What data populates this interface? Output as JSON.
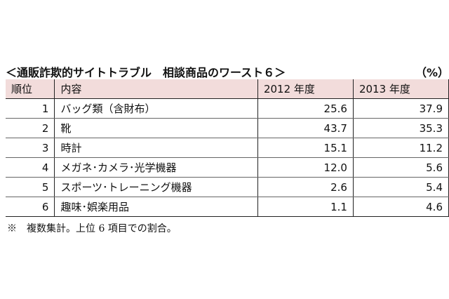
{
  "title": "＜通販詐欺的サイトトラブル　相談商品のワースト６＞",
  "unit": "（%）",
  "table": {
    "headers": [
      "順位",
      "内容",
      "2012 年度",
      "2013 年度"
    ],
    "rows": [
      {
        "rank": "1",
        "item": "バッグ類（含財布）",
        "y2012": "25.6",
        "y2013": "37.9"
      },
      {
        "rank": "2",
        "item": "靴",
        "y2012": "43.7",
        "y2013": "35.3"
      },
      {
        "rank": "3",
        "item": "時計",
        "y2012": "15.1",
        "y2013": "11.2"
      },
      {
        "rank": "4",
        "item": "メガネ･カメラ･光学機器",
        "y2012": "12.0",
        "y2013": "5.6"
      },
      {
        "rank": "5",
        "item": "スポーツ･トレーニング機器",
        "y2012": "2.6",
        "y2013": "5.4"
      },
      {
        "rank": "6",
        "item": "趣味･娯楽用品",
        "y2012": "1.1",
        "y2013": "4.6"
      }
    ]
  },
  "note": "※　複数集計。上位 6 項目での割合。",
  "colors": {
    "header_bg": "#f2dcdb"
  }
}
